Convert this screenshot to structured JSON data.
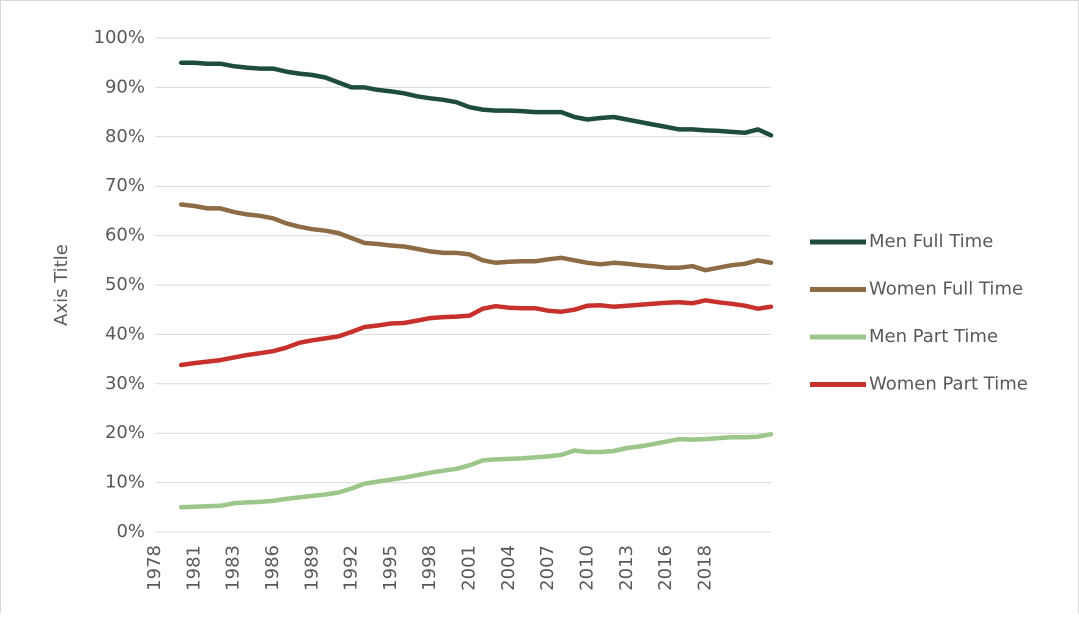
{
  "chart_data": {
    "type": "line",
    "y_axis_label": "Axis Title",
    "categories": [
      "1978",
      null,
      null,
      "1981",
      null,
      null,
      "1983",
      null,
      null,
      "1986",
      null,
      null,
      "1989",
      null,
      null,
      "1992",
      null,
      null,
      "1995",
      null,
      null,
      "1998",
      null,
      null,
      "2001",
      null,
      null,
      "2004",
      null,
      null,
      "2007",
      null,
      null,
      "2010",
      null,
      null,
      "2013",
      null,
      null,
      "2016",
      null,
      null,
      "2018",
      null,
      null,
      null,
      null,
      null
    ],
    "series": [
      {
        "name": "Men Full Time",
        "color": "#1e4d3c",
        "values": [
          null,
          null,
          95.0,
          95,
          94.8,
          94.8,
          94.3,
          94,
          93.8,
          93.8,
          93.2,
          92.8,
          92.5,
          92,
          91,
          90,
          90,
          89.5,
          89.2,
          88.8,
          88.2,
          87.8,
          87.5,
          87,
          86,
          85.5,
          85.3,
          85.3,
          85.2,
          85,
          85,
          85,
          84,
          83.5,
          83.8,
          84,
          83.5,
          83,
          82.5,
          82,
          81.5,
          81.5,
          81.3,
          81.2,
          81,
          80.8,
          81.5,
          80.3
        ]
      },
      {
        "name": "Women Full Time",
        "color": "#8c6b45",
        "values": [
          null,
          null,
          66.3,
          66,
          65.5,
          65.5,
          64.8,
          64.3,
          64,
          63.5,
          62.5,
          61.8,
          61.3,
          61,
          60.5,
          59.5,
          58.5,
          58.3,
          58,
          57.8,
          57.3,
          56.8,
          56.5,
          56.5,
          56.2,
          55,
          54.5,
          54.7,
          54.8,
          54.8,
          55.2,
          55.5,
          55,
          54.5,
          54.2,
          54.5,
          54.3,
          54,
          53.8,
          53.5,
          53.5,
          53.8,
          53,
          53.5,
          54,
          54.3,
          55,
          54.5
        ]
      },
      {
        "name": "Men Part Time",
        "color": "#9cc68a",
        "values": [
          null,
          null,
          5.0,
          5.1,
          5.2,
          5.3,
          5.8,
          6,
          6.1,
          6.3,
          6.7,
          7,
          7.3,
          7.6,
          8,
          8.8,
          9.8,
          10.2,
          10.6,
          11,
          11.5,
          12,
          12.4,
          12.8,
          13.5,
          14.5,
          14.7,
          14.8,
          14.9,
          15.1,
          15.3,
          15.6,
          16.5,
          16.2,
          16.2,
          16.4,
          17,
          17.3,
          17.8,
          18.3,
          18.8,
          18.7,
          18.8,
          19,
          19.2,
          19.2,
          19.3,
          19.8
        ]
      },
      {
        "name": "Women Part Time",
        "color": "#c8302b",
        "values": [
          null,
          null,
          33.8,
          34.2,
          34.5,
          34.8,
          35.3,
          35.8,
          36.2,
          36.6,
          37.3,
          38.3,
          38.8,
          39.2,
          39.6,
          40.5,
          41.5,
          41.8,
          42.2,
          42.3,
          42.8,
          43.3,
          43.5,
          43.6,
          43.8,
          45.2,
          45.7,
          45.4,
          45.3,
          45.3,
          44.8,
          44.6,
          45,
          45.8,
          45.9,
          45.6,
          45.8,
          46,
          46.2,
          46.4,
          46.5,
          46.3,
          46.9,
          46.5,
          46.2,
          45.8,
          45.2,
          45.6
        ]
      }
    ],
    "ylim": [
      0,
      100
    ],
    "yticks": [
      {
        "value": 0,
        "label": "0%"
      },
      {
        "value": 10,
        "label": "10%"
      },
      {
        "value": 20,
        "label": "20%"
      },
      {
        "value": 30,
        "label": "30%"
      },
      {
        "value": 40,
        "label": "40%"
      },
      {
        "value": 50,
        "label": "50%"
      },
      {
        "value": 60,
        "label": "60%"
      },
      {
        "value": 70,
        "label": "70%"
      },
      {
        "value": 80,
        "label": "80%"
      },
      {
        "value": 90,
        "label": "90%"
      },
      {
        "value": 100,
        "label": "100%"
      }
    ],
    "grid": true,
    "legend": "right"
  }
}
